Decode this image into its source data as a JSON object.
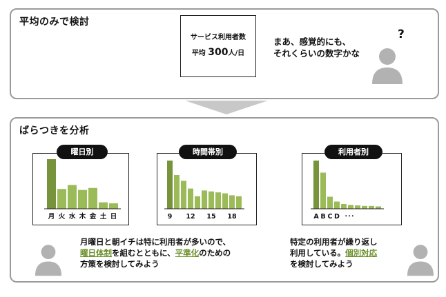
{
  "top": {
    "title": "平均のみで検討",
    "stat_line1": "サービス利用者数",
    "stat_line2_prefix": "平均",
    "stat_line2_number": "300",
    "stat_line2_suffix": "人/日",
    "comment_line1": "まあ、感覚的にも、",
    "comment_line2": "それくらいの数字かな",
    "question": "?"
  },
  "bottom": {
    "title": "ばらつきを分析",
    "charts": [
      {
        "label": "曜日別",
        "ticks": [
          "月",
          "火",
          "水",
          "木",
          "金",
          "土",
          "日"
        ]
      },
      {
        "label": "時間帯別",
        "ticks": [
          "9",
          "12",
          "15",
          "18"
        ]
      },
      {
        "label": "利用者別",
        "ticks": [
          "A",
          "B",
          "C",
          "D",
          "･･･"
        ]
      }
    ],
    "comment_left": {
      "line1": "月曜日と朝イチは特に利用者が多いので、",
      "hl1": "曜日体制",
      "mid1": "を組むとともに、",
      "hl2": "平準化",
      "end1": "のための",
      "line3": "方策を検討してみよう"
    },
    "comment_right": {
      "line1": "特定の利用者が繰り返し",
      "line2_prefix": "利用している。",
      "hl": "個別対応",
      "line3": "を検討してみよう"
    }
  },
  "chart_data": [
    {
      "type": "bar",
      "categories": [
        "月",
        "火",
        "水",
        "木",
        "金",
        "土",
        "日"
      ],
      "values": [
        100,
        40,
        48,
        38,
        42,
        13,
        11
      ],
      "ylim": [
        0,
        100
      ]
    },
    {
      "type": "bar",
      "categories": [
        "9",
        "10",
        "11",
        "12",
        "13",
        "14",
        "15",
        "16",
        "17",
        "18",
        "19"
      ],
      "values": [
        100,
        70,
        58,
        42,
        26,
        38,
        36,
        34,
        32,
        28,
        26
      ],
      "ylim": [
        0,
        100
      ]
    },
    {
      "type": "bar",
      "categories": [
        "A",
        "B",
        "C",
        "D",
        "E",
        "F",
        "G",
        "H",
        "I",
        "J"
      ],
      "values": [
        100,
        75,
        25,
        15,
        10,
        8,
        7,
        6,
        6,
        5
      ],
      "ylim": [
        0,
        100
      ]
    }
  ],
  "colors": {
    "bar_dark": "#77933c",
    "bar_light": "#9bbb59",
    "person": "#b2b2b2",
    "arrow": "#c8c8c8",
    "highlight": "#6b8f2a"
  }
}
